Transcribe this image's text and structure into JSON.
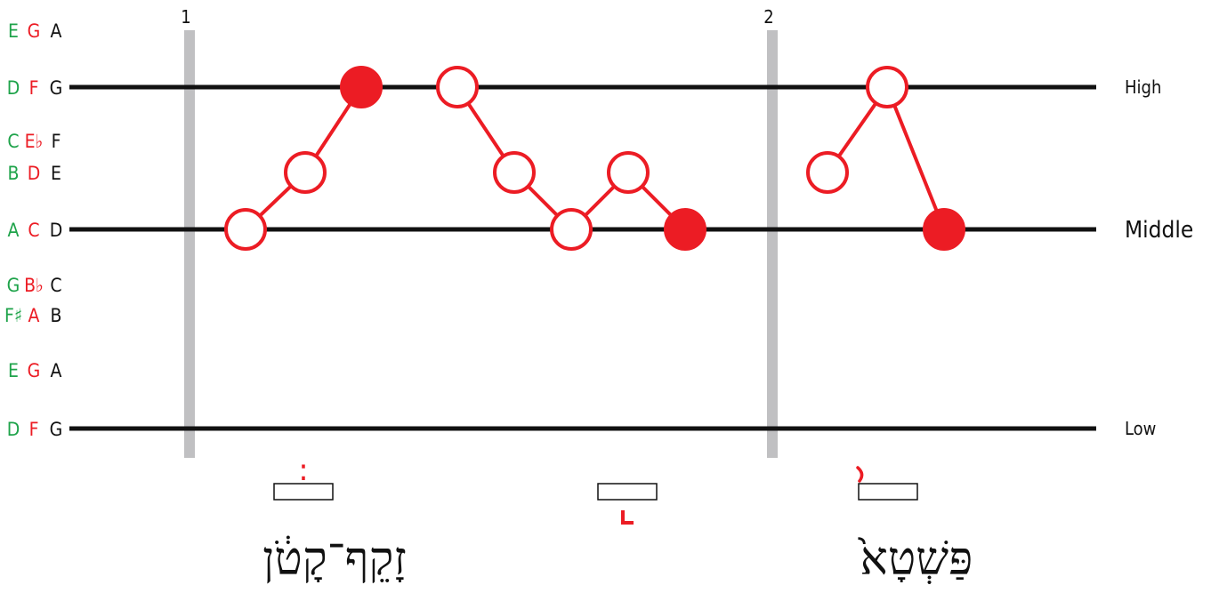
{
  "colors": {
    "green": "#1ea34a",
    "red": "#ec1c24",
    "black": "#111111",
    "bar_gray": "#c0c0c2",
    "white": "#ffffff"
  },
  "pitch_rows": [
    {
      "g": "E",
      "r": "G",
      "k": "A",
      "level": 1
    },
    {
      "g": "D",
      "r": "F",
      "k": "G",
      "level": 2
    },
    {
      "g": "C",
      "r": "E♭",
      "k": "F",
      "level": 3
    },
    {
      "g": "B",
      "r": "D",
      "k": "E",
      "level": 4
    },
    {
      "g": "A",
      "r": "C",
      "k": "D",
      "level": 5
    },
    {
      "g": "G",
      "r": "B♭",
      "k": "C",
      "level": 6
    },
    {
      "g": "F♯",
      "r": "A",
      "k": "B",
      "level": 7
    },
    {
      "g": "E",
      "r": "G",
      "k": "A",
      "level": 8
    },
    {
      "g": "D",
      "r": "F",
      "k": "G",
      "level": 9
    }
  ],
  "staff_lines": [
    {
      "label": "High",
      "level": 2
    },
    {
      "label": "Middle",
      "level": 5
    },
    {
      "label": "Low",
      "level": 9
    }
  ],
  "measures": [
    {
      "number": "1"
    },
    {
      "number": "2"
    }
  ],
  "melody_groups": [
    {
      "notes": [
        {
          "level": 5,
          "filled": false
        },
        {
          "level": 4,
          "filled": false
        },
        {
          "level": 2,
          "filled": true
        }
      ]
    },
    {
      "notes": [
        {
          "level": 2,
          "filled": false
        },
        {
          "level": 4,
          "filled": false
        },
        {
          "level": 5,
          "filled": false
        },
        {
          "level": 4,
          "filled": false
        },
        {
          "level": 5,
          "filled": true
        }
      ]
    },
    {
      "notes": [
        {
          "level": 4,
          "filled": false
        },
        {
          "level": 2,
          "filled": false
        },
        {
          "level": 5,
          "filled": true
        }
      ]
    }
  ],
  "accent_marks": [
    {
      "symbol": "֔",
      "name": "zaqef-qatan-mark"
    },
    {
      "symbol": "⌐",
      "name": "mahpakh-mark"
    },
    {
      "symbol": "֙",
      "name": "pashta-mark"
    }
  ],
  "words": [
    {
      "text": "זָקֵף־קָטֹ֔ן"
    },
    {
      "text": "פַּשְׁטָא֙"
    }
  ]
}
